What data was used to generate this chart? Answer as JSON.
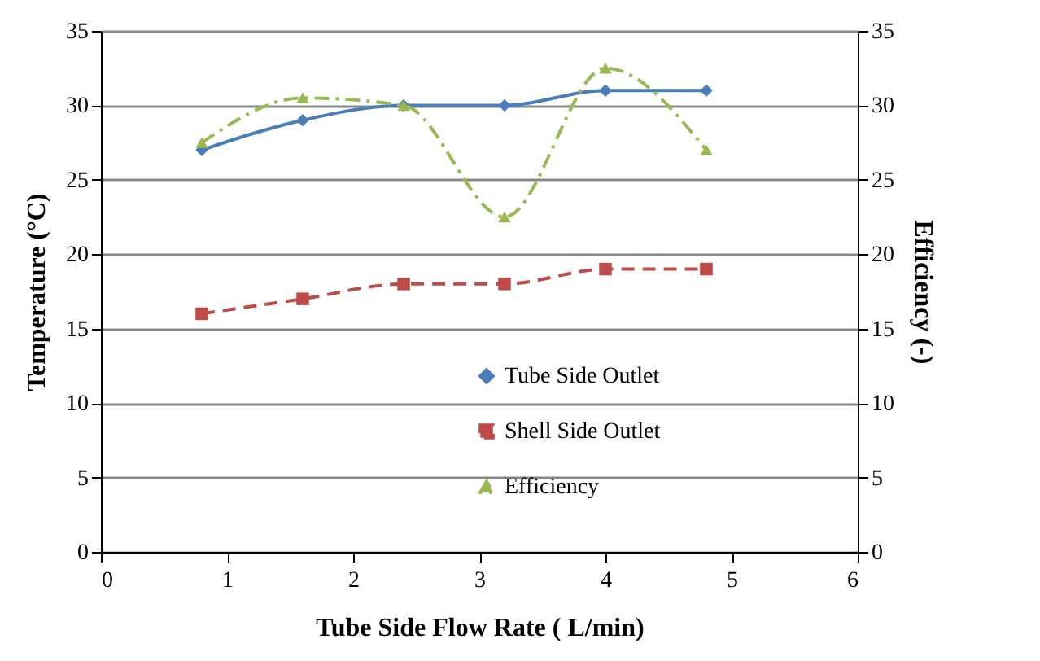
{
  "chart_data": {
    "type": "line",
    "xlabel": "Tube Side Flow Rate ( L/min)",
    "ylabel": "Temperature (°C)",
    "y2label": "Efficiency (-)",
    "x": [
      0.8,
      1.6,
      2.4,
      3.2,
      4.0,
      4.8
    ],
    "series": [
      {
        "name": "Tube Side Outlet",
        "color": "#4a7ebb",
        "values": [
          27,
          29,
          30,
          30,
          31,
          31
        ],
        "marker": "diamond",
        "line_style": "solid"
      },
      {
        "name": "Shell Side Outlet",
        "color": "#be4b48",
        "values": [
          16,
          17,
          18,
          18,
          19,
          19
        ],
        "marker": "square",
        "line_style": "dashed"
      },
      {
        "name": "Efficiency",
        "color": "#98b954",
        "values": [
          27.5,
          30.5,
          30,
          22.5,
          32.5,
          27
        ],
        "marker": "triangle",
        "line_style": "dashdot",
        "axis": "y2"
      }
    ],
    "xlim": [
      0,
      6
    ],
    "xticks": [
      0,
      1,
      2,
      3,
      4,
      5,
      6
    ],
    "ylim": [
      0,
      35
    ],
    "yticks": [
      0,
      5,
      10,
      15,
      20,
      25,
      30,
      35
    ],
    "y2lim": [
      0,
      35
    ],
    "y2ticks": [
      0,
      5,
      10,
      15,
      20,
      25,
      30,
      35
    ],
    "grid": "y",
    "legend": "bottom"
  }
}
